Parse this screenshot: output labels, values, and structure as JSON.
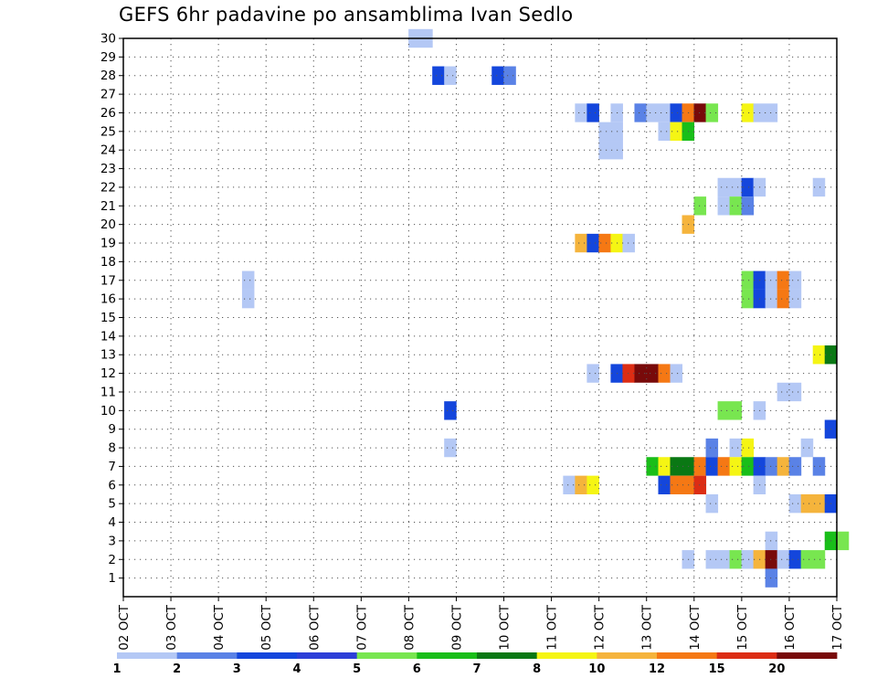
{
  "chart_data": {
    "type": "heatmap",
    "title": "GEFS 6hr padavine po ansamblima Ivan Sedlo",
    "x_labels": [
      "02 OCT",
      "03 OCT",
      "04 OCT",
      "05 OCT",
      "06 OCT",
      "07 OCT",
      "08 OCT",
      "09 OCT",
      "10 OCT",
      "11 OCT",
      "12 OCT",
      "13 OCT",
      "14 OCT",
      "15 OCT",
      "16 OCT",
      "17 OCT"
    ],
    "x_range_steps": [
      0,
      60
    ],
    "y_labels": [
      "1",
      "2",
      "3",
      "4",
      "5",
      "6",
      "7",
      "8",
      "9",
      "10",
      "11",
      "12",
      "13",
      "14",
      "15",
      "16",
      "17",
      "18",
      "19",
      "20",
      "21",
      "22",
      "23",
      "24",
      "25",
      "26",
      "27",
      "28",
      "29",
      "30"
    ],
    "y_range": [
      0,
      30
    ],
    "grid": true,
    "legend_position": "bottom",
    "legend": {
      "labels": [
        "1",
        "2",
        "3",
        "4",
        "5",
        "6",
        "7",
        "8",
        "10",
        "12",
        "15",
        "20"
      ],
      "colors": [
        "#b4c8f5",
        "#5a82e6",
        "#1446dc",
        "#2d3fd8",
        "#78e650",
        "#19be19",
        "#0a7814",
        "#f5f514",
        "#f5b43c",
        "#f57814",
        "#dc2d14",
        "#780a0a"
      ]
    },
    "cells": [
      {
        "member": 30,
        "step": [
          24,
          25
        ],
        "value": 1
      },
      {
        "member": 28,
        "step": 26,
        "value": 3
      },
      {
        "member": 28,
        "step": 27,
        "value": 1
      },
      {
        "member": 28,
        "step": 31,
        "value": 3
      },
      {
        "member": 28,
        "step": 32,
        "value": 2
      },
      {
        "member": 26,
        "step": 38,
        "value": 1
      },
      {
        "member": 26,
        "step": 39,
        "value": 3
      },
      {
        "member": 26,
        "step": 41,
        "value": 1
      },
      {
        "member": 26,
        "step": 43,
        "value": 2
      },
      {
        "member": 26,
        "step": [
          44,
          45
        ],
        "value": 1
      },
      {
        "member": 26,
        "step": 46,
        "value": 3
      },
      {
        "member": 26,
        "step": 47,
        "value": 12
      },
      {
        "member": 26,
        "step": 48,
        "value": 20
      },
      {
        "member": 26,
        "step": 49,
        "value": 5
      },
      {
        "member": 26,
        "step": 52,
        "value": 8
      },
      {
        "member": 26,
        "step": [
          53,
          54
        ],
        "value": 1
      },
      {
        "member": 25,
        "step": [
          40,
          41
        ],
        "value": 1
      },
      {
        "member": 25,
        "step": 45,
        "value": 1
      },
      {
        "member": 25,
        "step": 46,
        "value": 8
      },
      {
        "member": 25,
        "step": 47,
        "value": 6
      },
      {
        "member": 24,
        "step": [
          40,
          41
        ],
        "value": 1
      },
      {
        "member": 22,
        "step": [
          50,
          51
        ],
        "value": 1
      },
      {
        "member": 22,
        "step": 52,
        "value": 3
      },
      {
        "member": 22,
        "step": 53,
        "value": 1
      },
      {
        "member": 22,
        "step": 58,
        "value": 1
      },
      {
        "member": 21,
        "step": 48,
        "value": 5
      },
      {
        "member": 21,
        "step": 50,
        "value": 1
      },
      {
        "member": 21,
        "step": 51,
        "value": 5
      },
      {
        "member": 21,
        "step": 52,
        "value": 2
      },
      {
        "member": 20,
        "step": 47,
        "value": 10
      },
      {
        "member": 19,
        "step": 38,
        "value": 10
      },
      {
        "member": 19,
        "step": 39,
        "value": 3
      },
      {
        "member": 19,
        "step": 40,
        "value": 12
      },
      {
        "member": 19,
        "step": 41,
        "value": 8
      },
      {
        "member": 19,
        "step": 42,
        "value": 1
      },
      {
        "member": 17,
        "step": 10,
        "value": 1
      },
      {
        "member": 17,
        "step": 52,
        "value": 5
      },
      {
        "member": 17,
        "step": 53,
        "value": 3
      },
      {
        "member": 17,
        "step": 54,
        "value": 1
      },
      {
        "member": 17,
        "step": 55,
        "value": 12
      },
      {
        "member": 17,
        "step": 56,
        "value": 1
      },
      {
        "member": 16,
        "step": 10,
        "value": 1
      },
      {
        "member": 16,
        "step": 52,
        "value": 5
      },
      {
        "member": 16,
        "step": 53,
        "value": 3
      },
      {
        "member": 16,
        "step": 54,
        "value": 1
      },
      {
        "member": 16,
        "step": 55,
        "value": 12
      },
      {
        "member": 16,
        "step": 56,
        "value": 1
      },
      {
        "member": 13,
        "step": 58,
        "value": 8
      },
      {
        "member": 13,
        "step": 59,
        "value": 7
      },
      {
        "member": 12,
        "step": 39,
        "value": 1
      },
      {
        "member": 12,
        "step": 41,
        "value": 3
      },
      {
        "member": 12,
        "step": 42,
        "value": 15
      },
      {
        "member": 12,
        "step": [
          43,
          44
        ],
        "value": 20
      },
      {
        "member": 12,
        "step": 45,
        "value": 12
      },
      {
        "member": 12,
        "step": 46,
        "value": 1
      },
      {
        "member": 11,
        "step": [
          55,
          56
        ],
        "value": 1
      },
      {
        "member": 10,
        "step": 27,
        "value": 3
      },
      {
        "member": 10,
        "step": [
          50,
          51
        ],
        "value": 5
      },
      {
        "member": 10,
        "step": 53,
        "value": 1
      },
      {
        "member": 9,
        "step": 59,
        "value": 3
      },
      {
        "member": 8,
        "step": 27,
        "value": 1
      },
      {
        "member": 8,
        "step": 49,
        "value": 2
      },
      {
        "member": 8,
        "step": 51,
        "value": 1
      },
      {
        "member": 8,
        "step": 52,
        "value": 8
      },
      {
        "member": 8,
        "step": 57,
        "value": 1
      },
      {
        "member": 7,
        "step": 44,
        "value": 6
      },
      {
        "member": 7,
        "step": 45,
        "value": 8
      },
      {
        "member": 7,
        "step": [
          46,
          47
        ],
        "value": 7
      },
      {
        "member": 7,
        "step": 48,
        "value": 12
      },
      {
        "member": 7,
        "step": 49,
        "value": 3
      },
      {
        "member": 7,
        "step": 50,
        "value": 12
      },
      {
        "member": 7,
        "step": 51,
        "value": 8
      },
      {
        "member": 7,
        "step": 52,
        "value": 6
      },
      {
        "member": 7,
        "step": 53,
        "value": 3
      },
      {
        "member": 7,
        "step": 54,
        "value": 2
      },
      {
        "member": 7,
        "step": 55,
        "value": 10
      },
      {
        "member": 7,
        "step": 56,
        "value": 2
      },
      {
        "member": 7,
        "step": 58,
        "value": 2
      },
      {
        "member": 6,
        "step": 37,
        "value": 1
      },
      {
        "member": 6,
        "step": 38,
        "value": 10
      },
      {
        "member": 6,
        "step": 39,
        "value": 8
      },
      {
        "member": 6,
        "step": 45,
        "value": 3
      },
      {
        "member": 6,
        "step": [
          46,
          47
        ],
        "value": 12
      },
      {
        "member": 6,
        "step": 48,
        "value": 15
      },
      {
        "member": 6,
        "step": 53,
        "value": 1
      },
      {
        "member": 5,
        "step": 49,
        "value": 1
      },
      {
        "member": 5,
        "step": 56,
        "value": 1
      },
      {
        "member": 5,
        "step": [
          57,
          58
        ],
        "value": 10
      },
      {
        "member": 5,
        "step": 59,
        "value": 3
      },
      {
        "member": 3,
        "step": 54,
        "value": 1
      },
      {
        "member": 3,
        "step": 59,
        "value": 6
      },
      {
        "member": 3,
        "step": 60,
        "value": 5
      },
      {
        "member": 2,
        "step": 47,
        "value": 1
      },
      {
        "member": 2,
        "step": [
          49,
          50
        ],
        "value": 1
      },
      {
        "member": 2,
        "step": 51,
        "value": 5
      },
      {
        "member": 2,
        "step": 52,
        "value": 1
      },
      {
        "member": 2,
        "step": 53,
        "value": 10
      },
      {
        "member": 2,
        "step": 54,
        "value": 20
      },
      {
        "member": 2,
        "step": 55,
        "value": 1
      },
      {
        "member": 2,
        "step": 56,
        "value": 3
      },
      {
        "member": 2,
        "step": [
          57,
          58
        ],
        "value": 5
      },
      {
        "member": 1,
        "step": 54,
        "value": 2
      }
    ]
  }
}
